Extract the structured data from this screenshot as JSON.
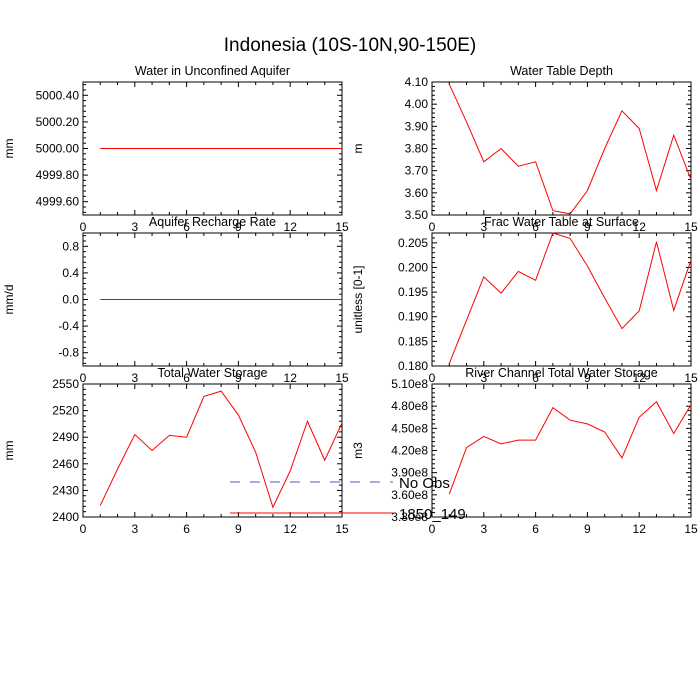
{
  "figure_title": "Indonesia (10S-10N,90-150E)",
  "colors": {
    "model": "#ff0000",
    "obs": "#5555cc",
    "axis": "#000000"
  },
  "legend": {
    "obs_label": "No Obs",
    "model_label": "1850_149"
  },
  "chart_data": [
    {
      "type": "line",
      "title": "Water in Unconfined Aquifer",
      "ylabel": "mm",
      "xlim": [
        0,
        15
      ],
      "xticks": [
        "0",
        "3",
        "6",
        "9",
        "12",
        "15"
      ],
      "ylim": [
        4999.5,
        5000.5
      ],
      "yticks": [
        {
          "v": 4999.6,
          "label": "4999.60"
        },
        {
          "v": 4999.8,
          "label": "4999.80"
        },
        {
          "v": 5000.0,
          "label": "5000.00"
        },
        {
          "v": 5000.2,
          "label": "5000.20"
        },
        {
          "v": 5000.4,
          "label": "5000.40"
        }
      ],
      "series": [
        {
          "name": "1850_149",
          "x": [
            1,
            2,
            3,
            4,
            5,
            6,
            7,
            8,
            9,
            10,
            11,
            12,
            13,
            14,
            15
          ],
          "values": [
            5000,
            5000,
            5000,
            5000,
            5000,
            5000,
            5000,
            5000,
            5000,
            5000,
            5000,
            5000,
            5000,
            5000,
            5000
          ]
        }
      ]
    },
    {
      "type": "line",
      "title": "Water Table Depth",
      "ylabel": "m",
      "xlim": [
        0,
        15
      ],
      "xticks": [
        "0",
        "3",
        "6",
        "9",
        "12",
        "15"
      ],
      "ylim": [
        3.5,
        4.1
      ],
      "yticks": [
        {
          "v": 3.5,
          "label": "3.50"
        },
        {
          "v": 3.6,
          "label": "3.60"
        },
        {
          "v": 3.7,
          "label": "3.70"
        },
        {
          "v": 3.8,
          "label": "3.80"
        },
        {
          "v": 3.9,
          "label": "3.90"
        },
        {
          "v": 4.0,
          "label": "4.00"
        },
        {
          "v": 4.1,
          "label": "4.10"
        }
      ],
      "series": [
        {
          "name": "1850_149",
          "x": [
            1,
            2,
            3,
            4,
            5,
            6,
            7,
            8,
            9,
            10,
            11,
            12,
            13,
            14,
            15
          ],
          "values": [
            4.09,
            3.92,
            3.74,
            3.8,
            3.72,
            3.74,
            3.52,
            3.505,
            3.61,
            3.8,
            3.97,
            3.89,
            3.61,
            3.86,
            3.66
          ]
        }
      ]
    },
    {
      "type": "line",
      "title": "Aquifer Recharge Rate",
      "ylabel": "mm/d",
      "xlim": [
        0,
        15
      ],
      "xticks": [
        "0",
        "3",
        "6",
        "9",
        "12",
        "15"
      ],
      "ylim": [
        -1.0,
        1.0
      ],
      "yticks": [
        {
          "v": -0.8,
          "label": "-0.8"
        },
        {
          "v": -0.4,
          "label": "-0.4"
        },
        {
          "v": 0.0,
          "label": "0.0"
        },
        {
          "v": 0.4,
          "label": "0.4"
        },
        {
          "v": 0.8,
          "label": "0.8"
        }
      ],
      "series": [
        {
          "name": "1850_149",
          "x": [
            1,
            2,
            3,
            4,
            5,
            6,
            7,
            8,
            9,
            10,
            11,
            12,
            13,
            14,
            15
          ],
          "values": [
            0,
            0,
            0,
            0,
            0,
            0,
            0,
            0,
            0,
            0,
            0,
            0,
            0,
            0,
            0
          ]
        }
      ]
    },
    {
      "type": "line",
      "title": "Frac Water Table at Surface",
      "ylabel": "unitless [0-1]",
      "xlim": [
        0,
        15
      ],
      "xticks": [
        "0",
        "3",
        "6",
        "9",
        "12",
        "15"
      ],
      "ylim": [
        0.18,
        0.207
      ],
      "yticks": [
        {
          "v": 0.18,
          "label": "0.180"
        },
        {
          "v": 0.185,
          "label": "0.185"
        },
        {
          "v": 0.19,
          "label": "0.190"
        },
        {
          "v": 0.195,
          "label": "0.195"
        },
        {
          "v": 0.2,
          "label": "0.200"
        },
        {
          "v": 0.205,
          "label": "0.205"
        }
      ],
      "series": [
        {
          "name": "1850_149",
          "x": [
            1,
            2,
            3,
            4,
            5,
            6,
            7,
            8,
            9,
            10,
            11,
            12,
            13,
            14,
            15
          ],
          "values": [
            0.1805,
            0.1893,
            0.1981,
            0.1948,
            0.1992,
            0.1974,
            0.207,
            0.2059,
            0.2003,
            0.1938,
            0.1876,
            0.1912,
            0.2052,
            0.1913,
            0.2015
          ]
        }
      ]
    },
    {
      "type": "line",
      "title": "Total Water Storage",
      "ylabel": "mm",
      "xlim": [
        0,
        15
      ],
      "xticks": [
        "0",
        "3",
        "6",
        "9",
        "12",
        "15"
      ],
      "ylim": [
        2400,
        2550
      ],
      "yticks": [
        {
          "v": 2400,
          "label": "2400"
        },
        {
          "v": 2430,
          "label": "2430"
        },
        {
          "v": 2460,
          "label": "2460"
        },
        {
          "v": 2490,
          "label": "2490"
        },
        {
          "v": 2520,
          "label": "2520"
        },
        {
          "v": 2550,
          "label": "2550"
        }
      ],
      "series": [
        {
          "name": "1850_149",
          "x": [
            1,
            2,
            3,
            4,
            5,
            6,
            7,
            8,
            9,
            10,
            11,
            12,
            13,
            14,
            15
          ],
          "values": [
            2413,
            2454,
            2493,
            2475,
            2492,
            2490,
            2536,
            2542,
            2515,
            2473,
            2411,
            2452,
            2508,
            2464,
            2506
          ]
        }
      ]
    },
    {
      "type": "line",
      "title": "River Channel Total Water Storage",
      "ylabel": "m3",
      "xlim": [
        0,
        15
      ],
      "xticks": [
        "0",
        "3",
        "6",
        "9",
        "12",
        "15"
      ],
      "ylim": [
        330000000.0,
        510000000.0
      ],
      "yticks": [
        {
          "v": 330000000.0,
          "label": "3.30e8"
        },
        {
          "v": 360000000.0,
          "label": "3.60e8"
        },
        {
          "v": 390000000.0,
          "label": "3.90e8"
        },
        {
          "v": 420000000.0,
          "label": "4.20e8"
        },
        {
          "v": 450000000.0,
          "label": "4.50e8"
        },
        {
          "v": 480000000.0,
          "label": "4.80e8"
        },
        {
          "v": 510000000.0,
          "label": "5.10e8"
        }
      ],
      "series": [
        {
          "name": "1850_149",
          "x": [
            1,
            2,
            3,
            4,
            5,
            6,
            7,
            8,
            9,
            10,
            11,
            12,
            13,
            14,
            15
          ],
          "values": [
            361000000.0,
            424000000.0,
            439000000.0,
            429000000.0,
            434000000.0,
            434000000.0,
            478000000.0,
            461000000.0,
            456000000.0,
            445000000.0,
            410000000.0,
            465000000.0,
            486000000.0,
            443000000.0,
            482000000.0
          ]
        }
      ]
    }
  ]
}
